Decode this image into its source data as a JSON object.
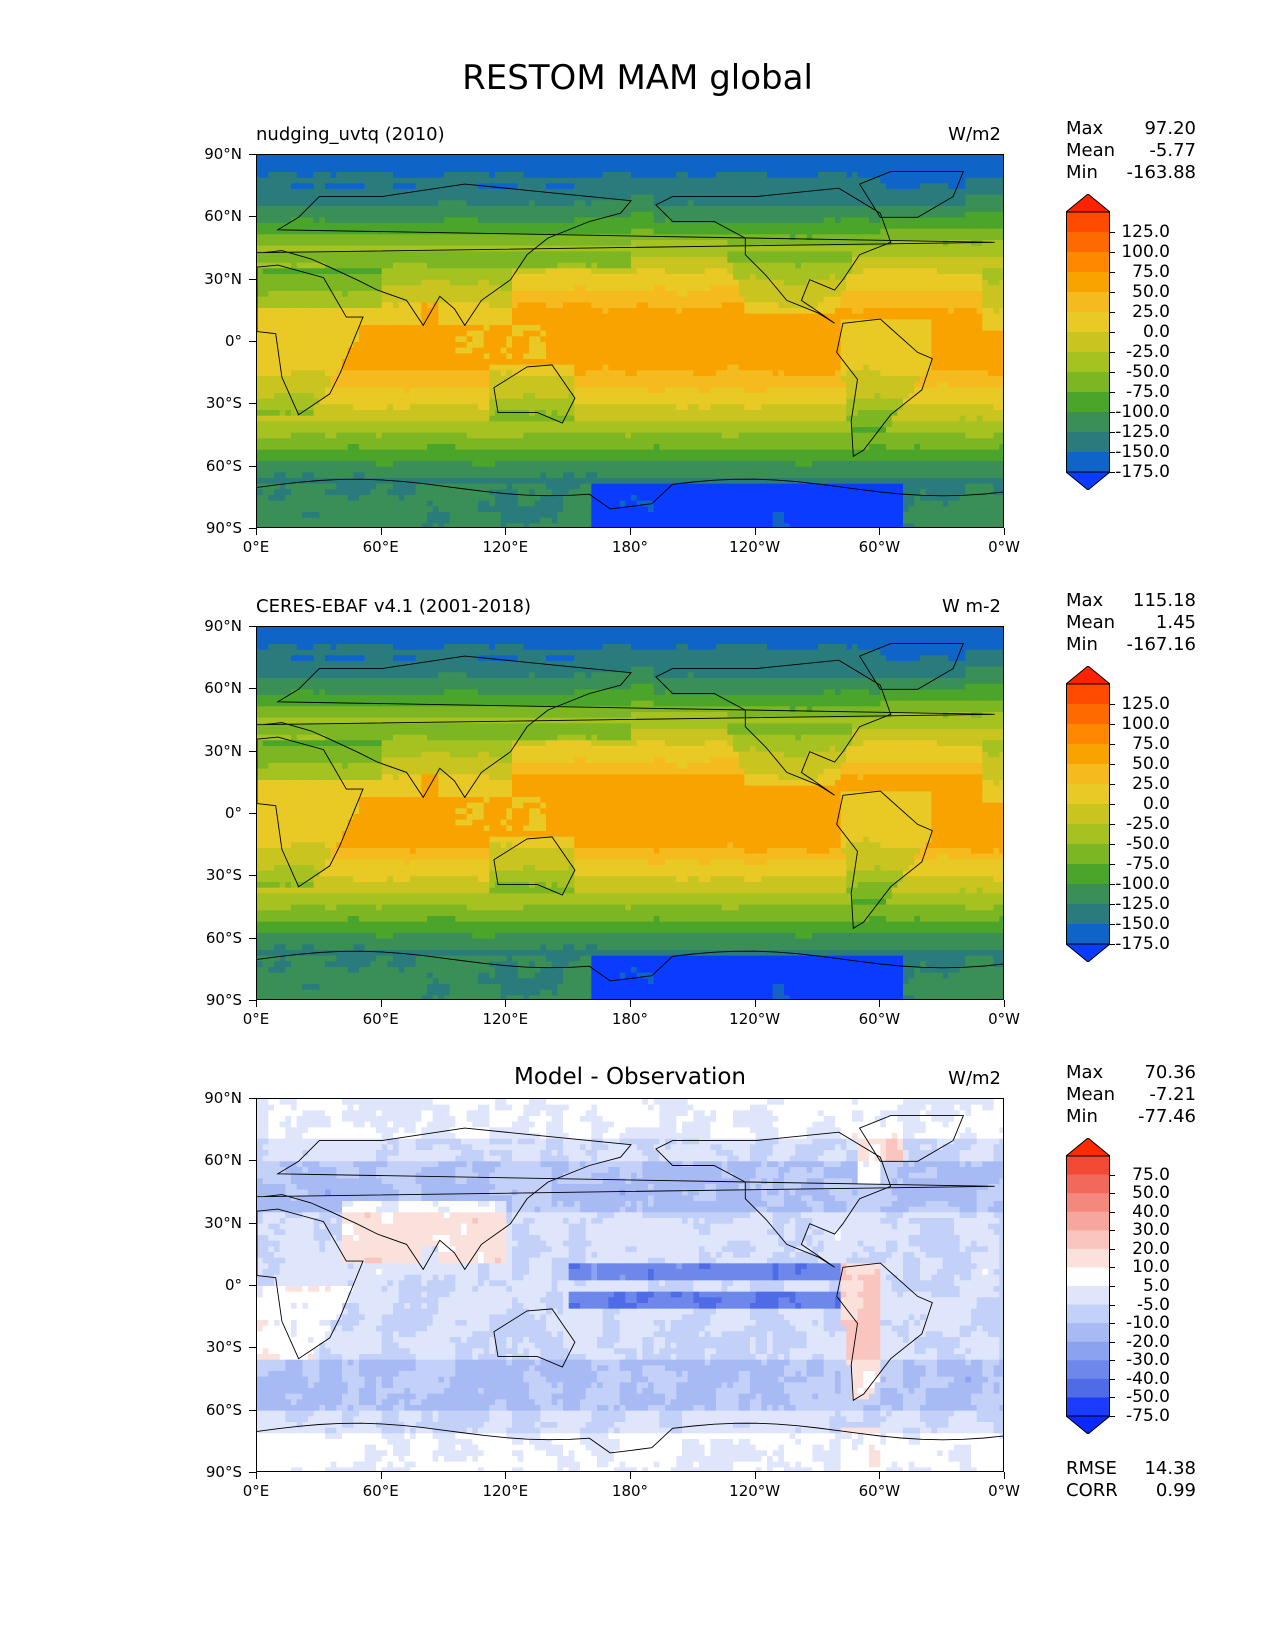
{
  "title": "RESTOM MAM global",
  "x_ticks": [
    "0°E",
    "60°E",
    "120°E",
    "180°",
    "120°W",
    "60°W",
    "0°W"
  ],
  "y_ticks": [
    "90°N",
    "60°N",
    "30°N",
    "0°",
    "30°S",
    "60°S",
    "90°S"
  ],
  "panels": [
    {
      "name": "model",
      "title": "nudging_uvtq (2010)",
      "title_style": "left",
      "units": "W/m2",
      "stats": [
        {
          "label": "Max",
          "value": "97.20"
        },
        {
          "label": "Mean",
          "value": "-5.77"
        },
        {
          "label": "Min",
          "value": "-163.88"
        }
      ],
      "colorbar_labels": [
        "125.0",
        "100.0",
        "75.0",
        "50.0",
        "25.0",
        "0.0",
        "-25.0",
        "-50.0",
        "-75.0",
        "-100.0",
        "-125.0",
        "-150.0",
        "-175.0"
      ],
      "colors": [
        "#ff2200",
        "#ff4a00",
        "#ff6a00",
        "#ff8800",
        "#f9a300",
        "#f5bb1e",
        "#e8c925",
        "#c9c420",
        "#a5c220",
        "#7cb623",
        "#4aa52a",
        "#3a8f56",
        "#2a7c7c",
        "#0f64c8",
        "#0a3cff"
      ],
      "scale_min": -175,
      "scale_max": 125,
      "pattern": "positive-pattern",
      "itcz_intensity": 0.6
    },
    {
      "name": "obs",
      "title": "CERES-EBAF v4.1 (2001-2018)",
      "title_style": "left",
      "units": "W m-2",
      "stats": [
        {
          "label": "Max",
          "value": "115.18"
        },
        {
          "label": "Mean",
          "value": "1.45"
        },
        {
          "label": "Min",
          "value": "-167.16"
        }
      ],
      "colorbar_labels": [
        "125.0",
        "100.0",
        "75.0",
        "50.0",
        "25.0",
        "0.0",
        "-25.0",
        "-50.0",
        "-75.0",
        "-100.0",
        "-125.0",
        "-150.0",
        "-175.0"
      ],
      "colors": [
        "#ff2200",
        "#ff4a00",
        "#ff6a00",
        "#ff8800",
        "#f9a300",
        "#f5bb1e",
        "#e8c925",
        "#c9c420",
        "#a5c220",
        "#7cb623",
        "#4aa52a",
        "#3a8f56",
        "#2a7c7c",
        "#0f64c8",
        "#0a3cff"
      ],
      "scale_min": -175,
      "scale_max": 125,
      "pattern": "positive-pattern",
      "itcz_intensity": 1.0
    },
    {
      "name": "diff",
      "title": "Model - Observation",
      "title_style": "center",
      "units": "W/m2",
      "stats": [
        {
          "label": "Max",
          "value": "70.36"
        },
        {
          "label": "Mean",
          "value": "-7.21"
        },
        {
          "label": "Min",
          "value": "-77.46"
        }
      ],
      "colorbar_labels": [
        "75.0",
        "50.0",
        "40.0",
        "30.0",
        "20.0",
        "10.0",
        "5.0",
        "-5.0",
        "-10.0",
        "-20.0",
        "-30.0",
        "-40.0",
        "-50.0",
        "-75.0"
      ],
      "colors": [
        "#ff2a00",
        "#f24a35",
        "#f2685a",
        "#f5887c",
        "#f7a69d",
        "#f9c5be",
        "#fbe1dc",
        "#ffffff",
        "#dfe6fb",
        "#c3d0f8",
        "#a7baf4",
        "#8aa2ef",
        "#6d88ea",
        "#4f6ce6",
        "#1b3cff",
        "#0a28ff"
      ],
      "scale_min": -80,
      "scale_max": 80,
      "pattern": "difference-pattern",
      "extra_stats": [
        {
          "label": "RMSE",
          "value": "14.38"
        },
        {
          "label": "CORR",
          "value": "0.99"
        }
      ]
    }
  ]
}
